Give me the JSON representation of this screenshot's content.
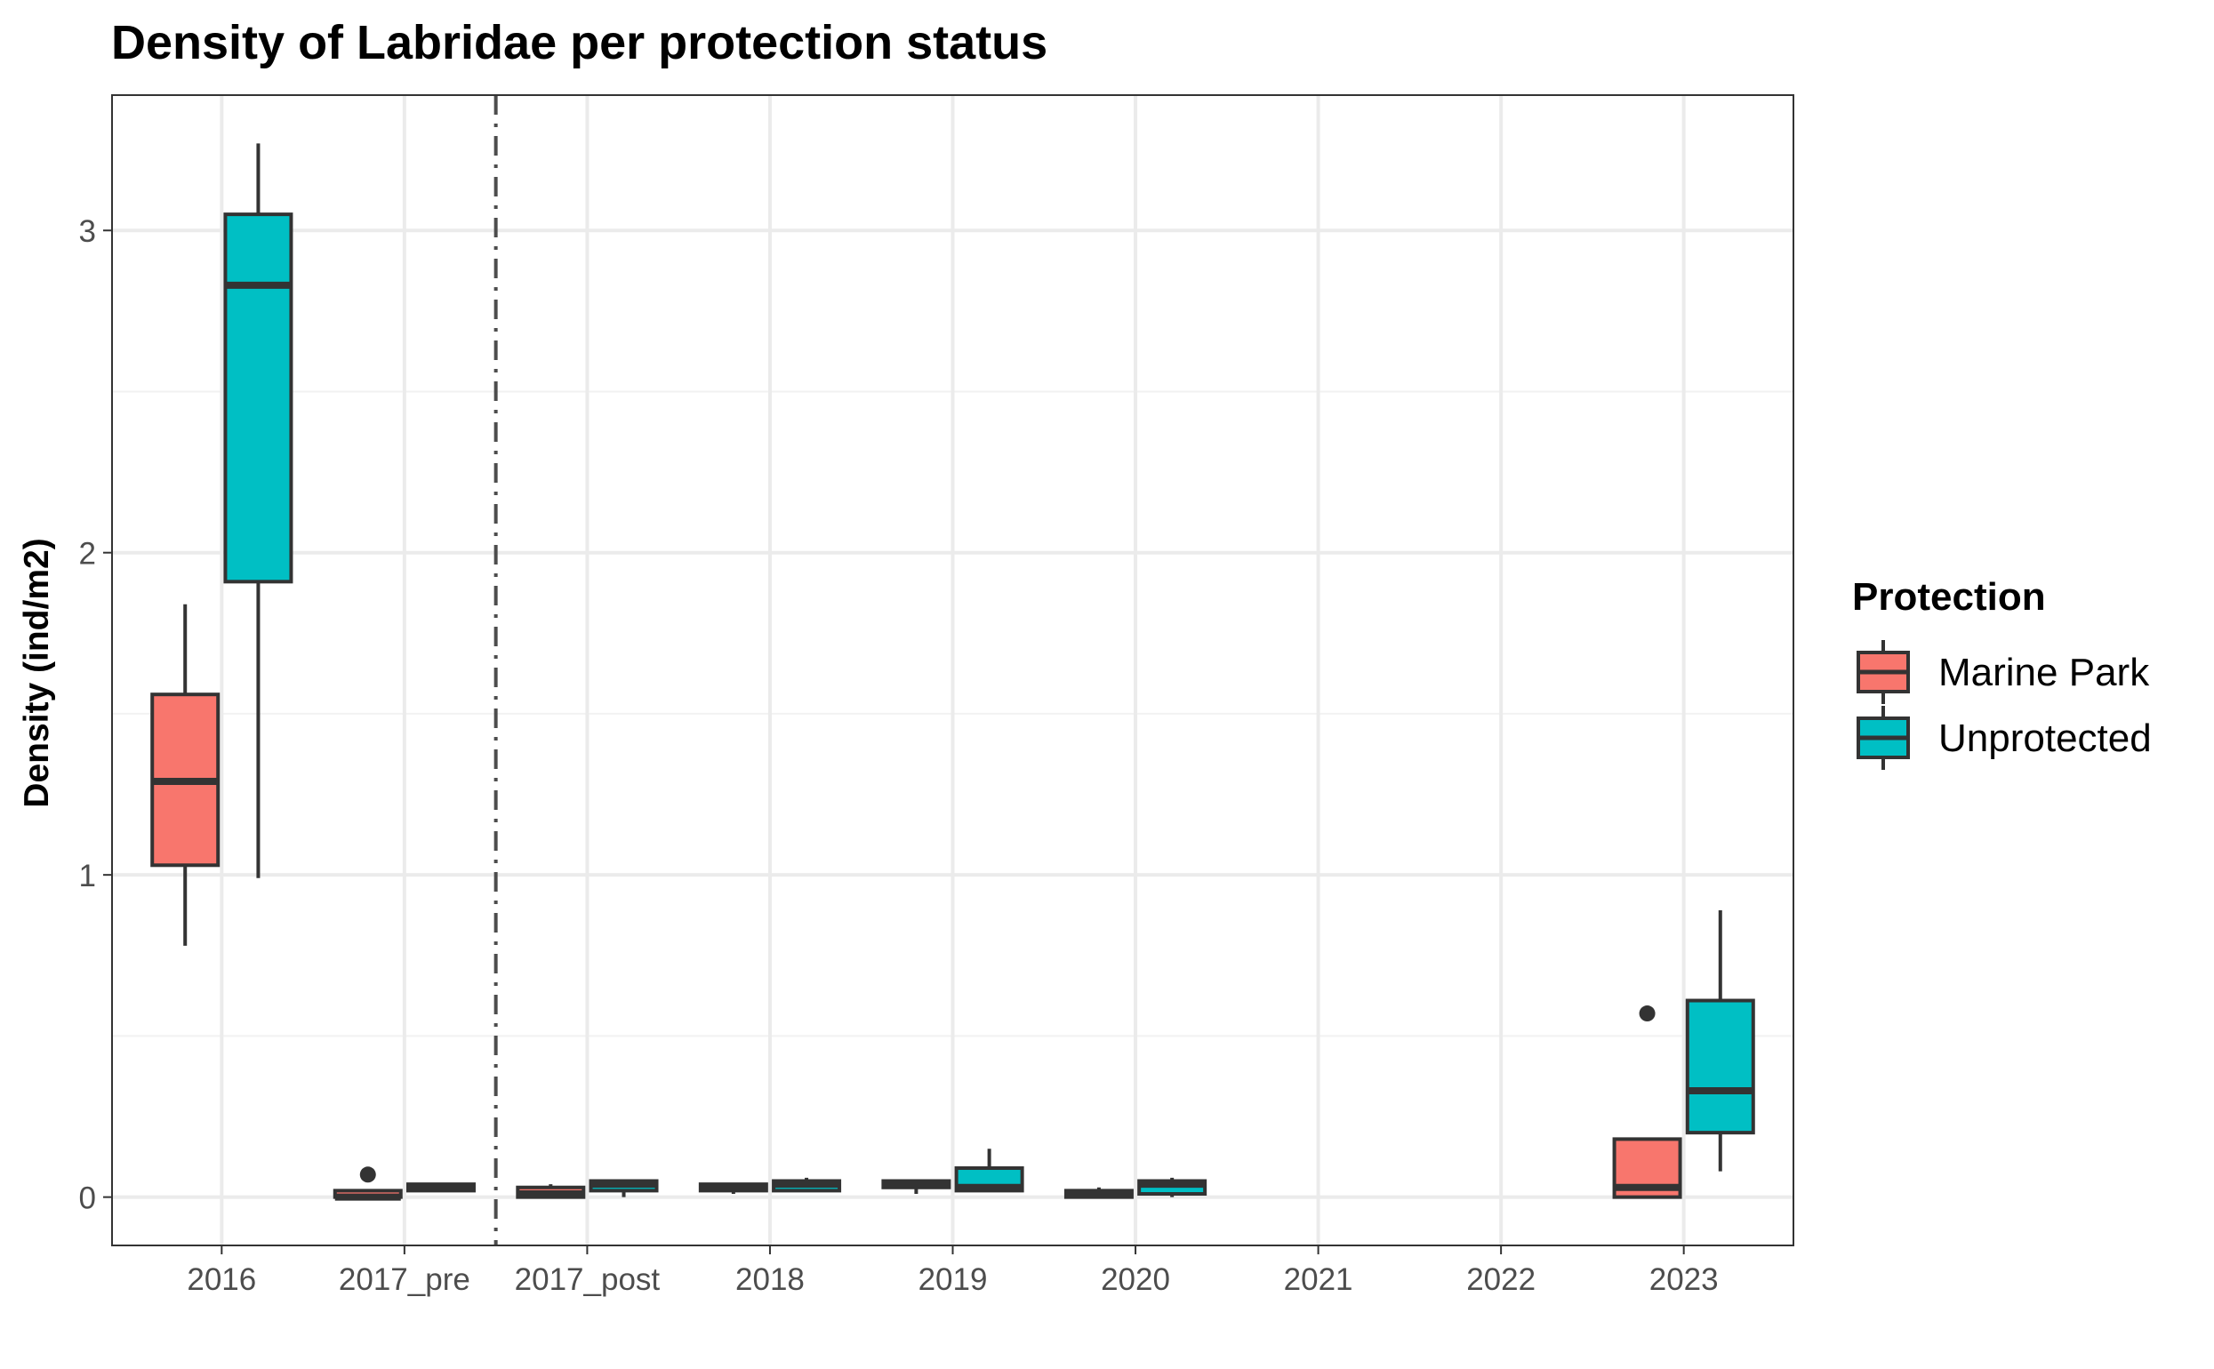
{
  "chart_data": {
    "type": "boxplot",
    "title": "Density of Labridae per protection status",
    "xlabel": "",
    "ylabel": "Density (ind/m2)",
    "ylim": [
      -0.15,
      3.42
    ],
    "y_ticks": [
      0,
      1,
      2,
      3
    ],
    "categories": [
      "2016",
      "2017_pre",
      "2017_post",
      "2018",
      "2019",
      "2020",
      "2021",
      "2022",
      "2023"
    ],
    "grid": true,
    "legend_position": "right",
    "legend_title": "Protection",
    "series": [
      {
        "name": "Marine Park",
        "color": "#F8766D",
        "boxes": [
          {
            "category": "2016",
            "min": 0.78,
            "q1": 1.03,
            "median": 1.29,
            "q3": 1.56,
            "max": 1.84,
            "outliers": []
          },
          {
            "category": "2017_pre",
            "min": 0.0,
            "q1": 0.0,
            "median": 0.0,
            "q3": 0.02,
            "max": 0.02,
            "outliers": [
              0.07
            ]
          },
          {
            "category": "2017_post",
            "min": 0.0,
            "q1": 0.0,
            "median": 0.01,
            "q3": 0.03,
            "max": 0.04,
            "outliers": []
          },
          {
            "category": "2018",
            "min": 0.01,
            "q1": 0.02,
            "median": 0.03,
            "q3": 0.04,
            "max": 0.04,
            "outliers": []
          },
          {
            "category": "2019",
            "min": 0.01,
            "q1": 0.03,
            "median": 0.04,
            "q3": 0.05,
            "max": 0.05,
            "outliers": []
          },
          {
            "category": "2020",
            "min": 0.0,
            "q1": 0.0,
            "median": 0.01,
            "q3": 0.02,
            "max": 0.03,
            "outliers": []
          },
          {
            "category": "2023",
            "min": 0.0,
            "q1": 0.0,
            "median": 0.03,
            "q3": 0.18,
            "max": 0.18,
            "outliers": [
              0.57
            ]
          }
        ]
      },
      {
        "name": "Unprotected",
        "color": "#00BFC4",
        "boxes": [
          {
            "category": "2016",
            "min": 0.99,
            "q1": 1.91,
            "median": 2.83,
            "q3": 3.05,
            "max": 3.27,
            "outliers": []
          },
          {
            "category": "2017_pre",
            "min": 0.02,
            "q1": 0.02,
            "median": 0.03,
            "q3": 0.04,
            "max": 0.04,
            "outliers": []
          },
          {
            "category": "2017_post",
            "min": 0.0,
            "q1": 0.02,
            "median": 0.04,
            "q3": 0.05,
            "max": 0.05,
            "outliers": []
          },
          {
            "category": "2018",
            "min": 0.02,
            "q1": 0.02,
            "median": 0.04,
            "q3": 0.05,
            "max": 0.06,
            "outliers": []
          },
          {
            "category": "2019",
            "min": 0.02,
            "q1": 0.02,
            "median": 0.03,
            "q3": 0.09,
            "max": 0.15,
            "outliers": []
          },
          {
            "category": "2020",
            "min": 0.0,
            "q1": 0.01,
            "median": 0.04,
            "q3": 0.05,
            "max": 0.06,
            "outliers": []
          },
          {
            "category": "2023",
            "min": 0.08,
            "q1": 0.2,
            "median": 0.33,
            "q3": 0.61,
            "max": 0.89,
            "outliers": []
          }
        ]
      }
    ],
    "reference_line": {
      "between": [
        "2017_pre",
        "2017_post"
      ],
      "style": "dashdot"
    }
  }
}
